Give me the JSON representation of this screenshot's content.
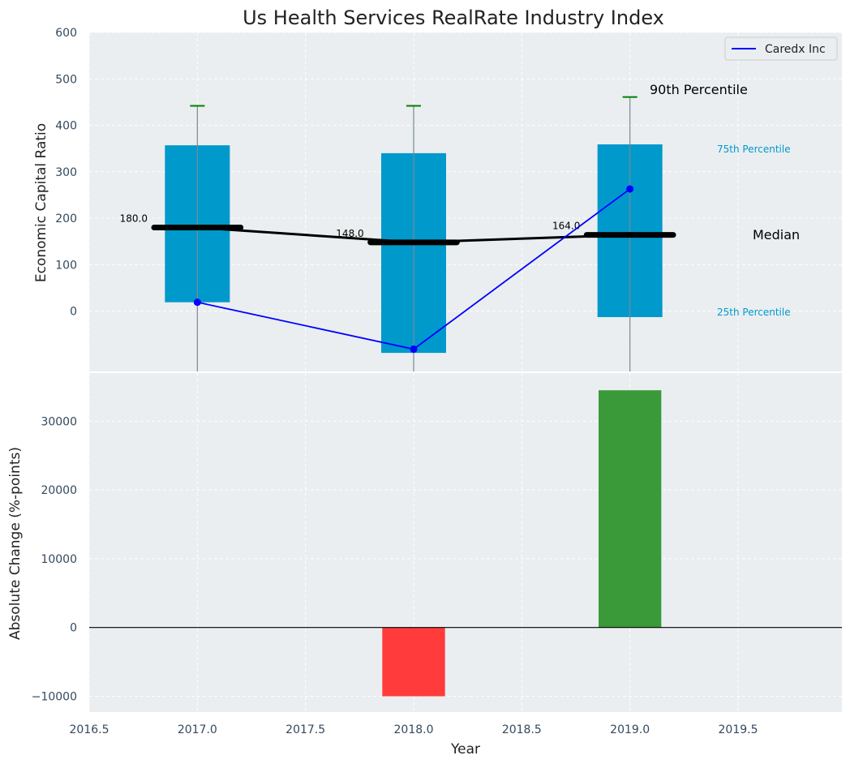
{
  "chart_data": [
    {
      "type": "box",
      "title": "Us Health Services RealRate Industry Index",
      "ylabel": "Economic Capital Ratio",
      "xlim": [
        2016.5,
        2019.98
      ],
      "ylim": [
        -130,
        600
      ],
      "yticks": [
        0,
        100,
        200,
        300,
        400,
        500,
        600
      ],
      "categories": [
        2017.0,
        2018.0,
        2019.0
      ],
      "p25": [
        19,
        -90,
        -13
      ],
      "p75": [
        357,
        340,
        359
      ],
      "p90": [
        442,
        442,
        461
      ],
      "median": [
        180,
        148,
        164
      ],
      "median_labels": [
        "180.0",
        "148.0",
        "164.0"
      ],
      "series": [
        {
          "name": "Caredx Inc",
          "color": "#0000ff",
          "x": [
            2017.0,
            2018.0,
            2019.0
          ],
          "values": [
            19,
            -82,
            263
          ]
        }
      ],
      "annotations": {
        "p90": "90th Percentile",
        "p75": "75th Percentile",
        "median": "Median",
        "p25": "25th Percentile"
      },
      "legend": {
        "label": "Caredx Inc",
        "position": "top-right"
      },
      "colors": {
        "box": "#0099cc",
        "whisker_cap": "#008000",
        "median": "#000000",
        "background": "#eaeef0",
        "percentile_text": "#0099cc"
      }
    },
    {
      "type": "bar",
      "ylabel": "Absolute Change (%-points)",
      "xlabel": "Year",
      "xlim": [
        2016.5,
        2019.98
      ],
      "ylim": [
        -12300,
        37000
      ],
      "yticks": [
        -10000,
        0,
        10000,
        20000,
        30000
      ],
      "ytick_labels": [
        "−10000",
        "0",
        "10000",
        "20000",
        "30000"
      ],
      "xticks": [
        2016.5,
        2017.0,
        2017.5,
        2018.0,
        2018.5,
        2019.0,
        2019.5
      ],
      "xtick_labels": [
        "2016.5",
        "2017.0",
        "2017.5",
        "2018.0",
        "2018.5",
        "2019.0",
        "2019.5"
      ],
      "x": [
        2018.0,
        2019.0
      ],
      "values": [
        -10000,
        34500
      ],
      "bar_colors": [
        "#ff3b3b",
        "#3a9a3a"
      ]
    }
  ]
}
